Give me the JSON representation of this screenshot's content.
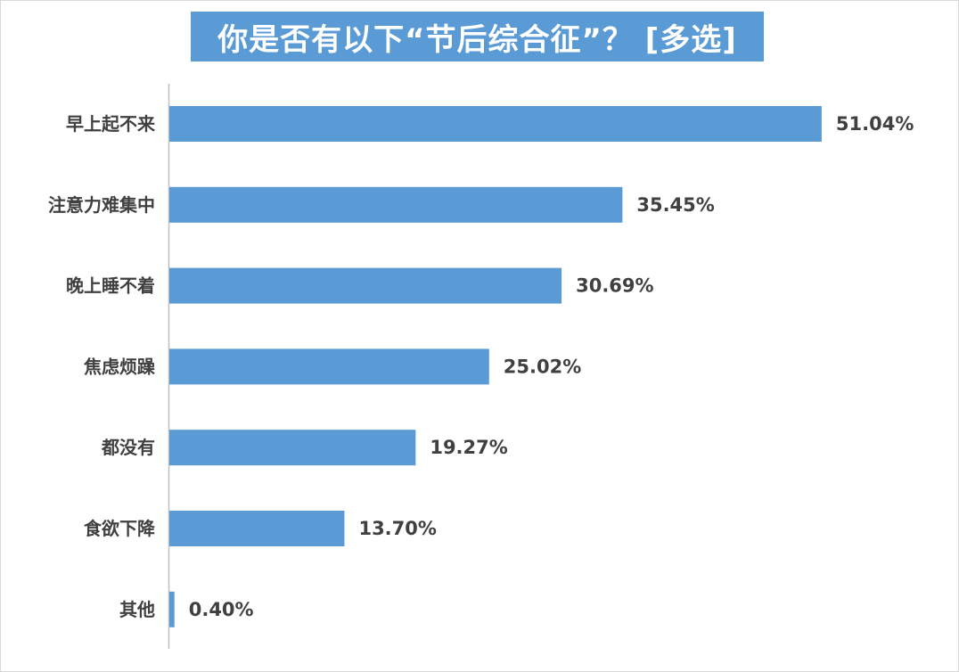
{
  "chart_data": {
    "type": "bar",
    "orientation": "horizontal",
    "title": "你是否有以下“节后综合征”？ [多选]",
    "categories": [
      "早上起不来",
      "注意力难集中",
      "晚上睡不着",
      "焦虑烦躁",
      "都没有",
      "食欲下降",
      "其他"
    ],
    "values": [
      51.04,
      35.45,
      30.69,
      25.02,
      19.27,
      13.7,
      0.4
    ],
    "value_labels": [
      "51.04%",
      "35.45%",
      "30.69%",
      "25.02%",
      "19.27%",
      "13.70%",
      "0.40%"
    ],
    "xlim": [
      0,
      55
    ],
    "grid": false,
    "legend": "none",
    "bar_color": "#5b9bd5",
    "title_bg_color": "#5b9bd5"
  }
}
